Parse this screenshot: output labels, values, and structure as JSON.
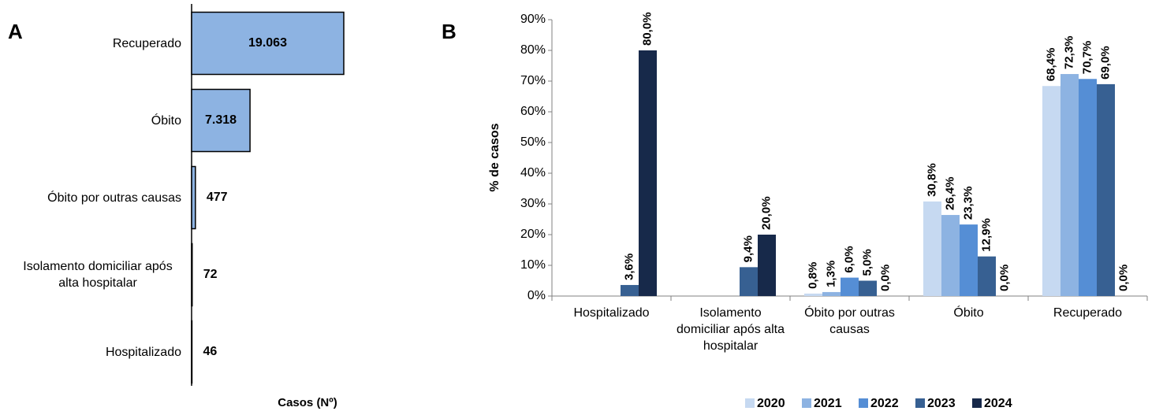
{
  "chart_data": [
    {
      "type": "bar",
      "orientation": "horizontal",
      "panel": "A",
      "categories": [
        "Recuperado",
        "Óbito",
        "Óbito por outras causas",
        "Isolamento domiciliar após alta hospitalar",
        "Hospitalizado"
      ],
      "values": [
        19063,
        7318,
        477,
        72,
        46
      ],
      "value_labels": [
        "19.063",
        "7.318",
        "477",
        "72",
        "46"
      ],
      "color": "#8db3e2",
      "xlabel": "Casos (Nº)"
    },
    {
      "type": "bar",
      "panel": "B",
      "categories": [
        "Hospitalizado",
        "Isolamento domiciliar após alta hospitalar",
        "Óbito por outras causas",
        "Óbito",
        "Recuperado"
      ],
      "series": [
        {
          "name": "2020",
          "color": "#c6d9f1",
          "values": [
            null,
            null,
            0.8,
            30.8,
            68.4
          ],
          "value_labels": [
            null,
            null,
            "0,8%",
            "30,8%",
            "68,4%"
          ]
        },
        {
          "name": "2021",
          "color": "#8db3e2",
          "values": [
            null,
            null,
            1.3,
            26.4,
            72.3
          ],
          "value_labels": [
            null,
            null,
            "1,3%",
            "26,4%",
            "72,3%"
          ]
        },
        {
          "name": "2022",
          "color": "#558ed5",
          "values": [
            null,
            null,
            6.0,
            23.3,
            70.7
          ],
          "value_labels": [
            null,
            null,
            "6,0%",
            "23,3%",
            "70,7%"
          ]
        },
        {
          "name": "2023",
          "color": "#376092",
          "values": [
            3.6,
            9.4,
            5.0,
            12.9,
            69.0
          ],
          "value_labels": [
            "3,6%",
            "9,4%",
            "5,0%",
            "12,9%",
            "69,0%"
          ]
        },
        {
          "name": "2024",
          "color": "#17294a",
          "values": [
            80.0,
            20.0,
            0.0,
            0.0,
            0.0
          ],
          "value_labels": [
            "80,0%",
            "20,0%",
            "0,0%",
            "0,0%",
            "0,0%"
          ]
        }
      ],
      "ylabel": "% de casos",
      "ylim": [
        0,
        90
      ],
      "yticks": [
        {
          "value": 0,
          "label": "0%"
        },
        {
          "value": 10,
          "label": "10%"
        },
        {
          "value": 20,
          "label": "20%"
        },
        {
          "value": 30,
          "label": "30%"
        },
        {
          "value": 40,
          "label": "40%"
        },
        {
          "value": 50,
          "label": "50%"
        },
        {
          "value": 60,
          "label": "60%"
        },
        {
          "value": 70,
          "label": "70%"
        },
        {
          "value": 80,
          "label": "80%"
        },
        {
          "value": 90,
          "label": "90%"
        }
      ],
      "legend": "bottom"
    }
  ]
}
